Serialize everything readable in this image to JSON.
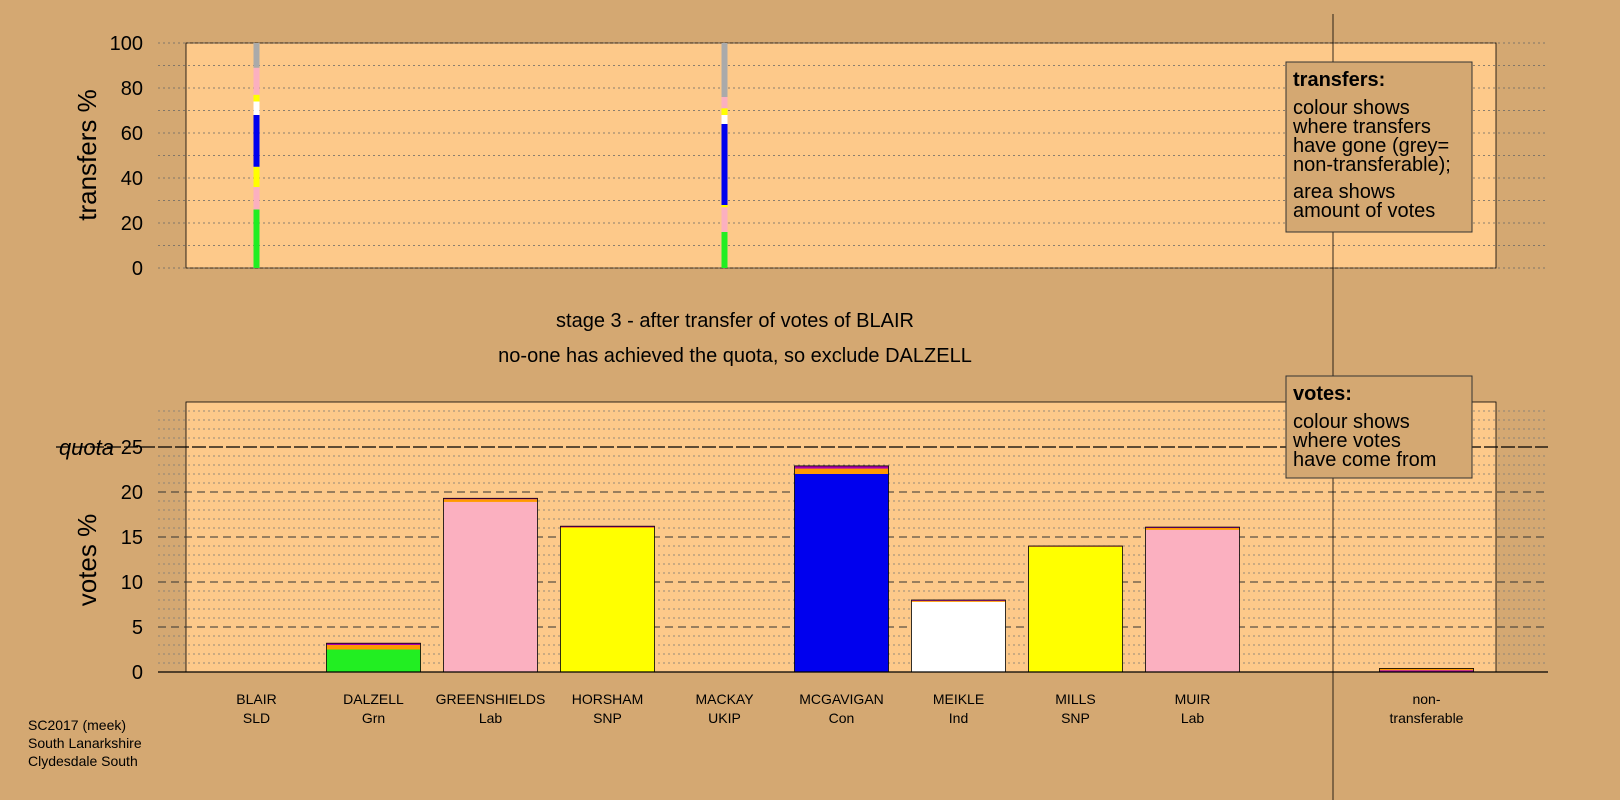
{
  "credits": [
    "SC2017 (meek)",
    "South Lanarkshire",
    "Clydesdale South"
  ],
  "colors": {
    "background": "#d4a872",
    "plot_area": "#fdc98a",
    "Grn": "#22ee22",
    "Lab": "#fbb0c0",
    "SNP": "#ffff00",
    "Con": "#0000ee",
    "Ind": "#ffffff",
    "SLD": "#ff9900",
    "UKIP": "#aa00aa",
    "non_transferable": "#aaaaaa"
  },
  "chart_data": [
    {
      "type": "bar",
      "title": "stage 3 - after transfer of votes of BLAIR",
      "subtitle": "no-one has achieved the quota, so exclude DALZELL",
      "ylabel": "votes %",
      "ylim": [
        0,
        30
      ],
      "yticks": [
        0,
        5,
        10,
        15,
        20,
        25
      ],
      "quota": 25,
      "quota_label": "quota",
      "grid": true,
      "categories": [
        {
          "name": "BLAIR",
          "party": "SLD"
        },
        {
          "name": "DALZELL",
          "party": "Grn"
        },
        {
          "name": "GREENSHIELDS",
          "party": "Lab"
        },
        {
          "name": "HORSHAM",
          "party": "SNP"
        },
        {
          "name": "MACKAY",
          "party": "UKIP"
        },
        {
          "name": "MCGAVIGAN",
          "party": "Con"
        },
        {
          "name": "MEIKLE",
          "party": "Ind"
        },
        {
          "name": "MILLS",
          "party": "SNP"
        },
        {
          "name": "MUIR",
          "party": "Lab"
        },
        {
          "name": "non-",
          "party": "transferable"
        }
      ],
      "bars": [
        {
          "category": "BLAIR",
          "segments": []
        },
        {
          "category": "DALZELL",
          "segments": [
            {
              "from": "first preferences",
              "value": 2.5,
              "color": "#22ee22"
            },
            {
              "from": "BLAIR",
              "value": 0.5,
              "color": "#ff9900"
            },
            {
              "from": "MACKAY",
              "value": 0.2,
              "color": "#aa00aa"
            }
          ]
        },
        {
          "category": "GREENSHIELDS",
          "segments": [
            {
              "from": "first preferences",
              "value": 18.9,
              "color": "#fbb0c0"
            },
            {
              "from": "BLAIR",
              "value": 0.3,
              "color": "#ff9900"
            },
            {
              "from": "MACKAY",
              "value": 0.1,
              "color": "#aa00aa"
            }
          ]
        },
        {
          "category": "HORSHAM",
          "segments": [
            {
              "from": "first preferences",
              "value": 16.0,
              "color": "#ffff00"
            },
            {
              "from": "BLAIR",
              "value": 0.1,
              "color": "#ff9900"
            },
            {
              "from": "MACKAY",
              "value": 0.1,
              "color": "#aa00aa"
            }
          ]
        },
        {
          "category": "MACKAY",
          "segments": []
        },
        {
          "category": "MCGAVIGAN",
          "segments": [
            {
              "from": "first preferences",
              "value": 22.0,
              "color": "#0000ee"
            },
            {
              "from": "BLAIR",
              "value": 0.6,
              "color": "#ff9900"
            },
            {
              "from": "MACKAY",
              "value": 0.3,
              "color": "#aa00aa"
            }
          ]
        },
        {
          "category": "MEIKLE",
          "segments": [
            {
              "from": "first preferences",
              "value": 7.8,
              "color": "#ffffff"
            },
            {
              "from": "BLAIR",
              "value": 0.1,
              "color": "#ff9900"
            },
            {
              "from": "MACKAY",
              "value": 0.1,
              "color": "#aa00aa"
            }
          ]
        },
        {
          "category": "MILLS",
          "segments": [
            {
              "from": "first preferences",
              "value": 13.9,
              "color": "#ffff00"
            },
            {
              "from": "BLAIR",
              "value": 0.05,
              "color": "#ff9900"
            },
            {
              "from": "MACKAY",
              "value": 0.05,
              "color": "#aa00aa"
            }
          ]
        },
        {
          "category": "MUIR",
          "segments": [
            {
              "from": "first preferences",
              "value": 15.8,
              "color": "#fbb0c0"
            },
            {
              "from": "BLAIR",
              "value": 0.2,
              "color": "#ff9900"
            },
            {
              "from": "MACKAY",
              "value": 0.1,
              "color": "#aa00aa"
            }
          ]
        },
        {
          "category": "non-transferable",
          "segments": [
            {
              "from": "MACKAY",
              "value": 0.2,
              "color": "#aa00aa"
            },
            {
              "from": "BLAIR",
              "value": 0.2,
              "color": "#ff9900"
            }
          ]
        }
      ],
      "legend": {
        "title": "votes:",
        "lines": [
          "colour shows",
          "where votes",
          "have come from"
        ]
      }
    },
    {
      "type": "bar",
      "ylabel": "transfers %",
      "ylim": [
        0,
        100
      ],
      "yticks": [
        0,
        20,
        40,
        60,
        80,
        100
      ],
      "grid": true,
      "transfers": [
        {
          "from": "MACKAY",
          "category_index": 0,
          "segments": [
            {
              "to": "DALZELL",
              "value": 26,
              "color": "#22ee22"
            },
            {
              "to": "GREENSHIELDS",
              "value": 10,
              "color": "#fbb0c0"
            },
            {
              "to": "HORSHAM",
              "value": 9,
              "color": "#ffff00"
            },
            {
              "to": "MCGAVIGAN",
              "value": 23,
              "color": "#0000ee"
            },
            {
              "to": "MEIKLE",
              "value": 6,
              "color": "#ffffff"
            },
            {
              "to": "MILLS",
              "value": 3,
              "color": "#ffff00"
            },
            {
              "to": "MUIR",
              "value": 12,
              "color": "#fbb0c0"
            },
            {
              "to": "non-transferable",
              "value": 11,
              "color": "#aaaaaa"
            }
          ]
        },
        {
          "from": "BLAIR",
          "category_index": 4,
          "segments": [
            {
              "to": "DALZELL",
              "value": 16,
              "color": "#22ee22"
            },
            {
              "to": "GREENSHIELDS",
              "value": 11,
              "color": "#fbb0c0"
            },
            {
              "to": "HORSHAM",
              "value": 1,
              "color": "#ffff00"
            },
            {
              "to": "MCGAVIGAN",
              "value": 36,
              "color": "#0000ee"
            },
            {
              "to": "MEIKLE",
              "value": 4,
              "color": "#ffffff"
            },
            {
              "to": "MILLS",
              "value": 3,
              "color": "#ffff00"
            },
            {
              "to": "MUIR",
              "value": 5,
              "color": "#fbb0c0"
            },
            {
              "to": "non-transferable",
              "value": 24,
              "color": "#aaaaaa"
            }
          ]
        }
      ],
      "legend": {
        "title": "transfers:",
        "lines": [
          "colour shows",
          "where transfers",
          "have gone (grey=",
          "non-transferable);",
          "area shows",
          "amount of votes"
        ]
      }
    }
  ]
}
